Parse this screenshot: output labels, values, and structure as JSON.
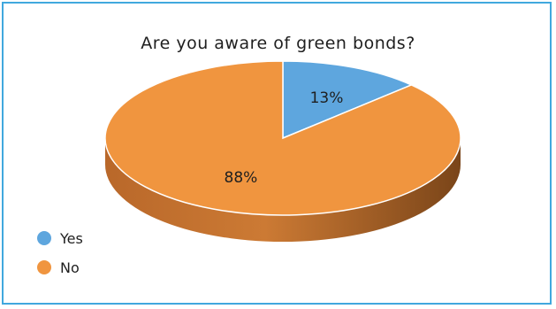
{
  "chart_data": {
    "type": "pie",
    "title": "Are you aware of green bonds?",
    "categories": [
      "Yes",
      "No"
    ],
    "values": [
      13,
      88
    ],
    "data_labels": [
      "13%",
      "88%"
    ],
    "legend_position": "bottom-left",
    "colors": [
      "#5ea6de",
      "#f0953f"
    ],
    "style": "3d"
  }
}
